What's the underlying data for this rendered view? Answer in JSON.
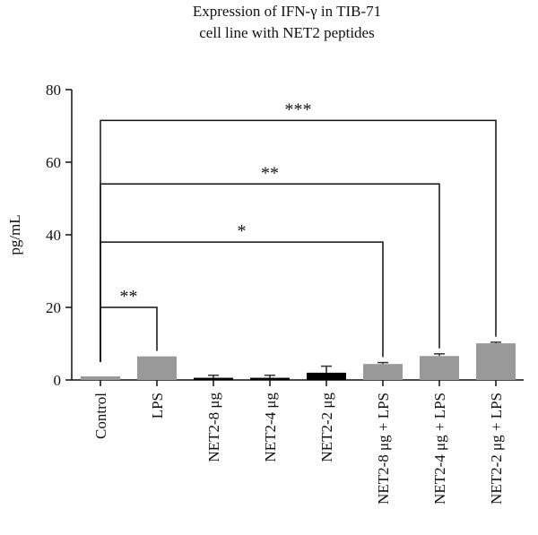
{
  "chart_data": {
    "type": "bar",
    "title_lines": [
      "Expression of IFN-γ in TIB-71",
      "cell line with NET2 peptides"
    ],
    "ylabel": "pg/mL",
    "xlabel": "",
    "ylim": [
      0,
      80
    ],
    "yticks": [
      "0",
      "20",
      "40",
      "60",
      "80"
    ],
    "grid": false,
    "legend": "none",
    "categories": [
      "Control",
      "LPS",
      "NET2-8 μg",
      "NET2-4 μg",
      "NET2-2 μg",
      "NET2-8 μg + LPS",
      "NET2-4 μg + LPS",
      "NET2-2 μg + LPS"
    ],
    "values": [
      1.0,
      6.5,
      0.6,
      0.6,
      2.0,
      4.4,
      6.6,
      10.1
    ],
    "errors": [
      0.0,
      0.0,
      0.7,
      0.7,
      1.8,
      0.4,
      0.6,
      0.3
    ],
    "bar_colors": [
      "#999999",
      "#999999",
      "#000000",
      "#000000",
      "#000000",
      "#999999",
      "#999999",
      "#999999"
    ],
    "significance": [
      {
        "from": 0,
        "to": 1,
        "label": "**",
        "level": 20
      },
      {
        "from": 0,
        "to": 5,
        "label": "*",
        "level": 38
      },
      {
        "from": 0,
        "to": 6,
        "label": "**",
        "level": 54
      },
      {
        "from": 0,
        "to": 7,
        "label": "***",
        "level": 71.5
      }
    ]
  }
}
